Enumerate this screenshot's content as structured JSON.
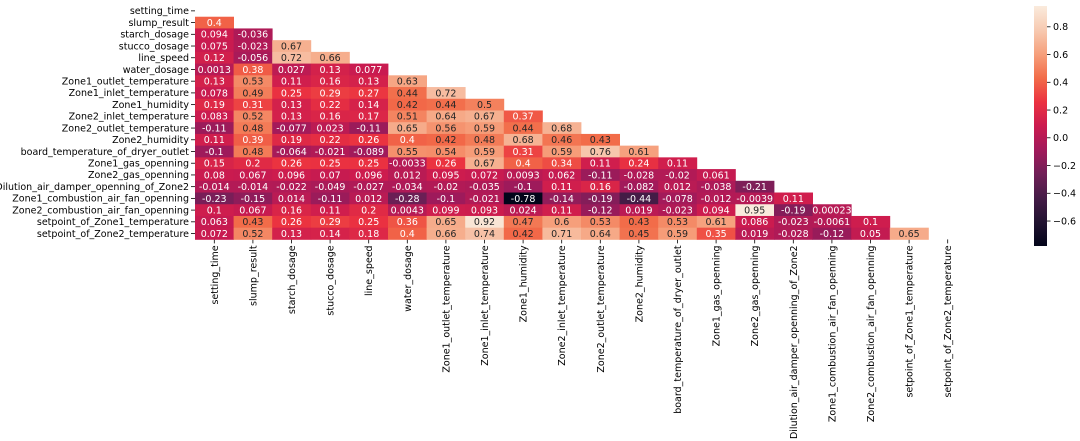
{
  "chart_data": {
    "type": "heatmap",
    "title": "",
    "xlabel": "",
    "ylabel": "",
    "mask": "upper-triangle-including-diagonal",
    "variables": [
      "setting_time",
      "slump_result",
      "starch_dosage",
      "stucco_dosage",
      "line_speed",
      "water_dosage",
      "Zone1_outlet_temperature",
      "Zone1_inlet_temperature",
      "Zone1_humidity",
      "Zone2_inlet_temperature",
      "Zone2_outlet_temperature",
      "Zone2_humidity",
      "board_temperature_of_dryer_outlet",
      "Zone1_gas_openning",
      "Zone2_gas_openning",
      "Dilution_air_damper_openning_of_Zone2",
      "Zone1_combustion_air_fan_openning",
      "Zone2_combustion_air_fan_openning",
      "setpoint_of_Zone1_temperature",
      "setpoint_of_Zone2_temperature"
    ],
    "values": [
      [],
      [
        "0.4"
      ],
      [
        "0.094",
        "-0.036"
      ],
      [
        "0.075",
        "-0.023",
        "0.67"
      ],
      [
        "0.12",
        "-0.056",
        "0.72",
        "0.66"
      ],
      [
        "0.0013",
        "0.38",
        "0.027",
        "0.13",
        "0.077"
      ],
      [
        "0.13",
        "0.53",
        "0.11",
        "0.16",
        "0.13",
        "0.63"
      ],
      [
        "0.078",
        "0.49",
        "0.25",
        "0.29",
        "0.27",
        "0.44",
        "0.72"
      ],
      [
        "0.19",
        "0.31",
        "0.13",
        "0.22",
        "0.14",
        "0.42",
        "0.44",
        "0.5"
      ],
      [
        "0.083",
        "0.52",
        "0.13",
        "0.16",
        "0.17",
        "0.51",
        "0.64",
        "0.67",
        "0.37"
      ],
      [
        "-0.11",
        "0.48",
        "-0.077",
        "0.023",
        "-0.11",
        "0.65",
        "0.56",
        "0.59",
        "0.44",
        "0.68"
      ],
      [
        "0.11",
        "0.39",
        "0.19",
        "0.22",
        "0.26",
        "0.4",
        "0.42",
        "0.48",
        "0.68",
        "0.46",
        "0.43"
      ],
      [
        "-0.1",
        "0.48",
        "-0.064",
        "-0.021",
        "-0.089",
        "0.55",
        "0.54",
        "0.59",
        "0.31",
        "0.59",
        "0.76",
        "0.61"
      ],
      [
        "0.15",
        "0.2",
        "0.26",
        "0.25",
        "0.25",
        "-0.0033",
        "0.26",
        "0.67",
        "0.4",
        "0.34",
        "0.11",
        "0.24",
        "0.11"
      ],
      [
        "0.08",
        "0.067",
        "0.096",
        "0.07",
        "0.096",
        "0.012",
        "0.095",
        "0.072",
        "0.0093",
        "0.062",
        "-0.11",
        "-0.028",
        "-0.02",
        "0.061"
      ],
      [
        "-0.014",
        "-0.014",
        "-0.022",
        "-0.049",
        "-0.027",
        "-0.034",
        "-0.02",
        "-0.035",
        "-0.1",
        "0.11",
        "0.16",
        "-0.082",
        "0.012",
        "-0.038",
        "-0.21"
      ],
      [
        "-0.23",
        "-0.15",
        "0.014",
        "-0.11",
        "0.012",
        "-0.28",
        "-0.1",
        "-0.021",
        "-0.78",
        "-0.14",
        "-0.19",
        "-0.44",
        "-0.078",
        "-0.012",
        "-0.0039",
        "0.11"
      ],
      [
        "0.1",
        "0.067",
        "0.16",
        "0.11",
        "0.2",
        "0.0043",
        "0.099",
        "0.093",
        "0.024",
        "0.11",
        "-0.12",
        "0.019",
        "-0.023",
        "0.094",
        "0.95",
        "-0.19",
        "0.00023"
      ],
      [
        "0.063",
        "0.43",
        "0.26",
        "0.29",
        "0.25",
        "0.36",
        "0.65",
        "0.92",
        "0.47",
        "0.6",
        "0.53",
        "0.43",
        "0.53",
        "0.61",
        "0.086",
        "-0.023",
        "-0.0061",
        "0.1"
      ],
      [
        "0.072",
        "0.52",
        "0.13",
        "0.14",
        "0.18",
        "0.4",
        "0.66",
        "0.74",
        "0.42",
        "0.71",
        "0.64",
        "0.45",
        "0.59",
        "0.35",
        "0.019",
        "-0.028",
        "-0.12",
        "0.05",
        "0.65"
      ]
    ],
    "colorbar": {
      "colormap": "rocket",
      "vmin": -0.78,
      "vmax": 0.95,
      "ticks": [
        "0.8",
        "0.6",
        "0.4",
        "0.2",
        "0.0",
        "−0.2",
        "−0.4",
        "−0.6"
      ],
      "tick_values": [
        0.8,
        0.6,
        0.4,
        0.2,
        0.0,
        -0.2,
        -0.4,
        -0.6
      ]
    }
  }
}
